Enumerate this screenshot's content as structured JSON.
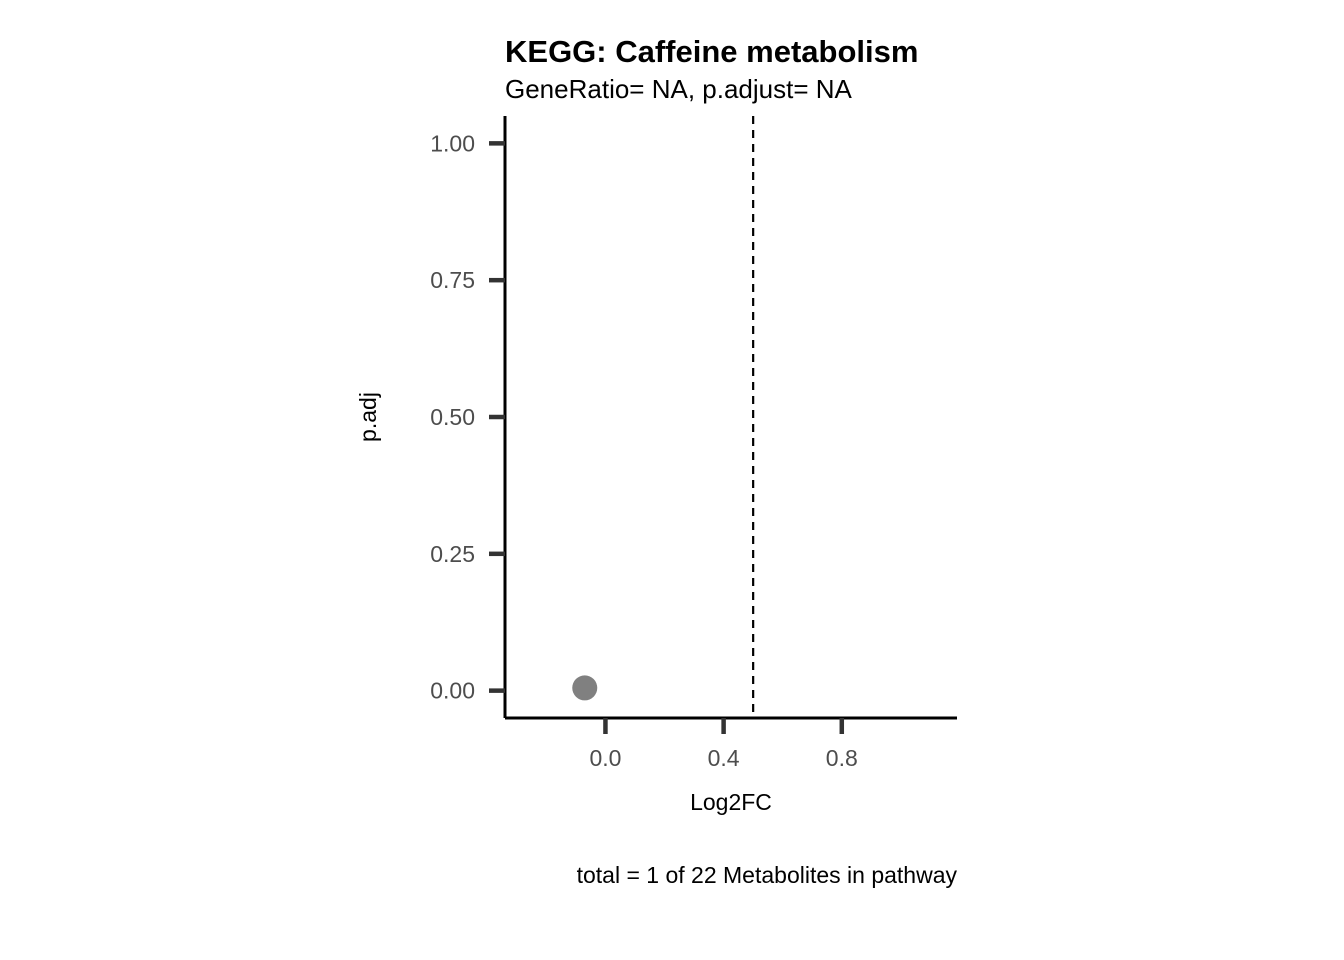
{
  "chart_data": {
    "type": "scatter",
    "title": "KEGG: Caffeine metabolism",
    "subtitle": "GeneRatio= NA, p.adjust= NA",
    "xlabel": "Log2FC",
    "ylabel": "p.adj",
    "caption": "total = 1 of 22 Metabolites in pathway",
    "xlim": [
      -0.34,
      1.19
    ],
    "ylim": [
      -0.05,
      1.05
    ],
    "x_ticks": [
      0.0,
      0.4,
      0.8
    ],
    "x_tick_labels": [
      "0.0",
      "0.4",
      "0.8"
    ],
    "y_ticks": [
      0.0,
      0.25,
      0.5,
      0.75,
      1.0
    ],
    "y_tick_labels": [
      "0.00",
      "0.25",
      "0.50",
      "0.75",
      "1.00"
    ],
    "reference_line": {
      "axis": "x",
      "value": 0.5,
      "style": "dashed"
    },
    "grid": false,
    "series": [
      {
        "points": [
          {
            "x": -0.07,
            "y": 0.005
          }
        ],
        "color": "#808080"
      }
    ]
  }
}
